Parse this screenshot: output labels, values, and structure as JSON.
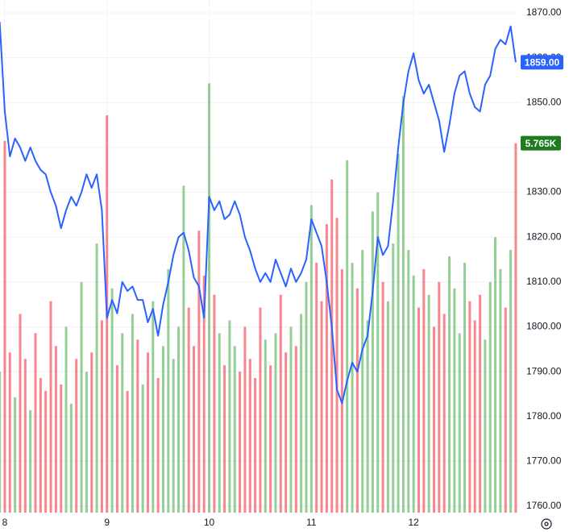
{
  "chart_data": {
    "type": "line",
    "x": [
      7.95,
      8,
      8.05,
      8.1,
      8.15,
      8.2,
      8.25,
      8.3,
      8.35,
      8.4,
      8.45,
      8.5,
      8.55,
      8.6,
      8.65,
      8.7,
      8.75,
      8.8,
      8.85,
      8.9,
      8.95,
      9,
      9.05,
      9.1,
      9.15,
      9.2,
      9.25,
      9.3,
      9.35,
      9.4,
      9.45,
      9.5,
      9.55,
      9.6,
      9.65,
      9.7,
      9.75,
      9.8,
      9.85,
      9.9,
      9.95,
      10,
      10.05,
      10.1,
      10.15,
      10.2,
      10.25,
      10.3,
      10.35,
      10.4,
      10.45,
      10.5,
      10.55,
      10.6,
      10.65,
      10.7,
      10.75,
      10.8,
      10.85,
      10.9,
      10.95,
      11,
      11.05,
      11.1,
      11.15,
      11.2,
      11.25,
      11.3,
      11.35,
      11.4,
      11.45,
      11.5,
      11.55,
      11.6,
      11.65,
      11.7,
      11.75,
      11.8,
      11.85,
      11.9,
      11.95,
      12,
      12.05,
      12.1,
      12.15,
      12.2,
      12.25,
      12.3,
      12.35,
      12.4,
      12.45,
      12.5,
      12.55,
      12.6,
      12.65,
      12.7,
      12.75,
      12.8,
      12.85,
      12.9,
      12.95,
      13
    ],
    "series": [
      {
        "color": "#2962ff",
        "last_label": "1859.00",
        "values": [
          1868,
          1848,
          1838,
          1842,
          1840,
          1837,
          1840,
          1837,
          1835,
          1834,
          1830,
          1827,
          1822,
          1826,
          1829,
          1827,
          1830,
          1834,
          1831,
          1834,
          1826,
          1802,
          1806,
          1803,
          1810,
          1808,
          1809,
          1806,
          1806,
          1801,
          1804,
          1798,
          1805,
          1810,
          1816,
          1820,
          1821,
          1817,
          1811,
          1809,
          1802,
          1829,
          1826,
          1828,
          1824,
          1825,
          1828,
          1825,
          1820,
          1817,
          1813,
          1810,
          1812,
          1810,
          1815,
          1812,
          1809,
          1813,
          1810,
          1812,
          1815,
          1824,
          1821,
          1818,
          1810,
          1800,
          1786,
          1783,
          1788,
          1792,
          1790,
          1795,
          1798,
          1808,
          1820,
          1816,
          1818,
          1828,
          1840,
          1850,
          1857,
          1861,
          1855,
          1852,
          1854,
          1850,
          1846,
          1839,
          1845,
          1852,
          1856,
          1857,
          1852,
          1849,
          1848,
          1854,
          1856,
          1862,
          1864,
          1863,
          1867,
          1859
        ]
      },
      {
        "axis": "y2",
        "up_color": "#4caf50",
        "down_color": "#f23645",
        "tag_color": "#1e7b1e",
        "last_label": "5.765K",
        "values": [
          2200,
          5800,
          2500,
          1800,
          3100,
          2400,
          1600,
          2800,
          2100,
          1900,
          3300,
          2600,
          2000,
          2900,
          1700,
          2400,
          3600,
          2200,
          2500,
          4200,
          3000,
          6200,
          3500,
          2300,
          2800,
          1900,
          3100,
          2700,
          2000,
          2500,
          3300,
          2100,
          2600,
          3800,
          2400,
          2900,
          5100,
          3200,
          2600,
          4400,
          3700,
          6700,
          3400,
          2800,
          2300,
          3000,
          2600,
          2200,
          2900,
          2400,
          2100,
          3200,
          2700,
          2300,
          2800,
          3400,
          2500,
          2900,
          2600,
          3100,
          3600,
          4800,
          3900,
          3300,
          4500,
          5200,
          4600,
          3800,
          5500,
          3900,
          3500,
          4100,
          3000,
          4700,
          5000,
          3600,
          3300,
          4200,
          5600,
          6500,
          4100,
          3700,
          3200,
          3800,
          3400,
          2900,
          3600,
          3100,
          4000,
          3500,
          2800,
          3900,
          3300,
          3000,
          3400,
          2700,
          3600,
          4300,
          3800,
          3200,
          4100,
          5765
        ]
      }
    ],
    "xlim": [
      7.953,
      13.04
    ],
    "xticks": [
      8,
      9,
      10,
      11,
      12
    ],
    "ylim": [
      1758.56,
      1872.88
    ],
    "yticks": [
      {
        "value": 1870,
        "label": "1870.00"
      },
      {
        "value": 1860,
        "label": "1860.00"
      },
      {
        "value": 1850,
        "label": "1850.00"
      },
      {
        "value": 1840,
        "label": "1840.00"
      },
      {
        "value": 1830,
        "label": "1830.00"
      },
      {
        "value": 1820,
        "label": "1820.00"
      },
      {
        "value": 1810,
        "label": "1810.00"
      },
      {
        "value": 1800,
        "label": "1800.00"
      },
      {
        "value": 1790,
        "label": "1790.00"
      },
      {
        "value": 1780,
        "label": "1780.00"
      },
      {
        "value": 1770,
        "label": "1770.00"
      },
      {
        "value": 1760,
        "label": "1760.00"
      }
    ],
    "y2lim": [
      0,
      8000
    ],
    "grid": true
  }
}
